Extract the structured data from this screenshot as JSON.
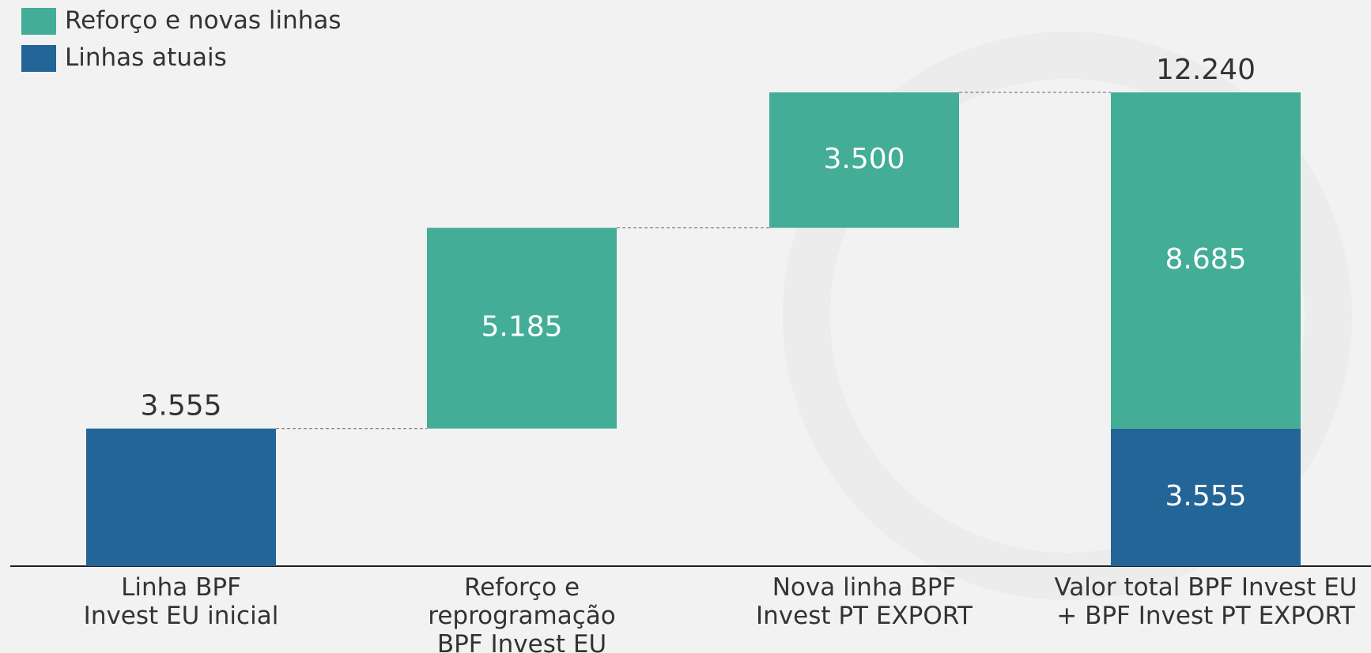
{
  "chart_data": {
    "type": "waterfall",
    "categories": [
      "Linha BPF\nInvest EU inicial",
      "Reforço e\nreprogramação\nBPF Invest EU",
      "Nova linha BPF\nInvest PT EXPORT",
      "Valor total BPF Invest EU\n+ BPF Invest PT EXPORT"
    ],
    "series": [
      {
        "name": "Reforço e novas linhas",
        "color": "#44ad97",
        "values": [
          null,
          5185,
          3500,
          8685
        ],
        "value_labels": [
          null,
          "5.185",
          "3.500",
          "8.685"
        ]
      },
      {
        "name": "Linhas atuais",
        "color": "#246598",
        "values": [
          3555,
          null,
          null,
          3555
        ],
        "value_labels": [
          "3.555",
          null,
          null,
          "3.555"
        ]
      }
    ],
    "total": {
      "value": 12240,
      "label": "12.240"
    }
  }
}
